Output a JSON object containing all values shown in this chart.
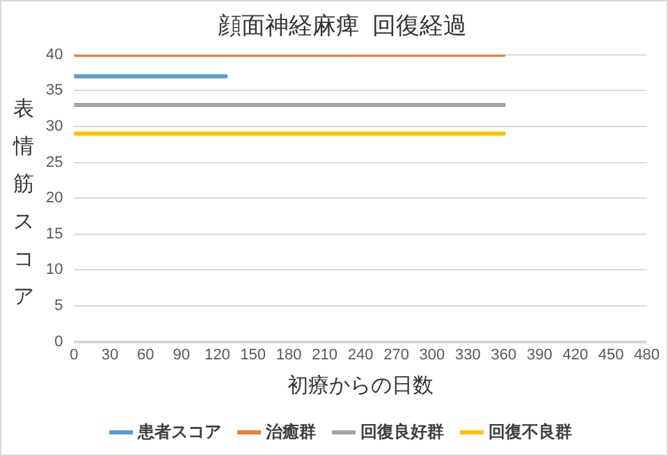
{
  "chart_data": {
    "type": "line",
    "title": "顔面神経麻痺  回復経過",
    "xlabel": "初療からの日数",
    "ylabel": "表情筋スコア",
    "xlim": [
      0,
      480
    ],
    "xticks": [
      0,
      30,
      60,
      90,
      120,
      150,
      180,
      210,
      240,
      270,
      300,
      330,
      360,
      390,
      420,
      450,
      480
    ],
    "ylim": [
      0,
      40
    ],
    "yticks": [
      0,
      5,
      10,
      15,
      20,
      25,
      30,
      35,
      40
    ],
    "grid": "y",
    "legend": "bottom",
    "marker": "none",
    "line_style": "solid",
    "series": [
      {
        "name": "患者スコア",
        "color": "#5b9bd5",
        "x": [
          0,
          127
        ],
        "values": [
          37,
          37
        ]
      },
      {
        "name": "治癒群",
        "color": "#ed7d31",
        "x": [
          0,
          360
        ],
        "values": [
          40,
          40
        ]
      },
      {
        "name": "回復良好群",
        "color": "#a5a5a5",
        "x": [
          0,
          360
        ],
        "values": [
          33,
          33
        ]
      },
      {
        "name": "回復不良群",
        "color": "#ffc000",
        "x": [
          0,
          360
        ],
        "values": [
          29,
          29
        ]
      }
    ]
  }
}
